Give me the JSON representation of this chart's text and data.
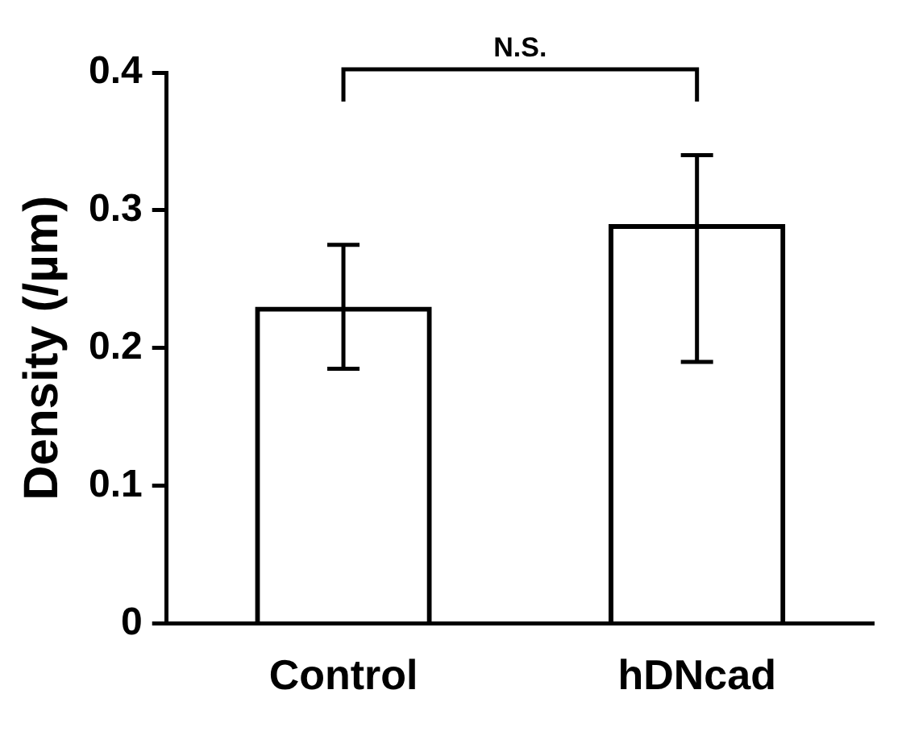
{
  "chart_data": {
    "type": "bar",
    "categories": [
      "Control",
      "hDNcad"
    ],
    "values": [
      0.23,
      0.29
    ],
    "color": "#000000",
    "errors": [
      [
        0.185,
        0.275
      ],
      [
        0.19,
        0.34
      ]
    ],
    "ylabel": "Density (/µm)",
    "ylim": [
      0,
      0.4
    ],
    "yticks": [
      0,
      0.1,
      0.2,
      0.3,
      0.4
    ],
    "annotations": [
      "N.S."
    ],
    "grid": false,
    "legend": false
  }
}
